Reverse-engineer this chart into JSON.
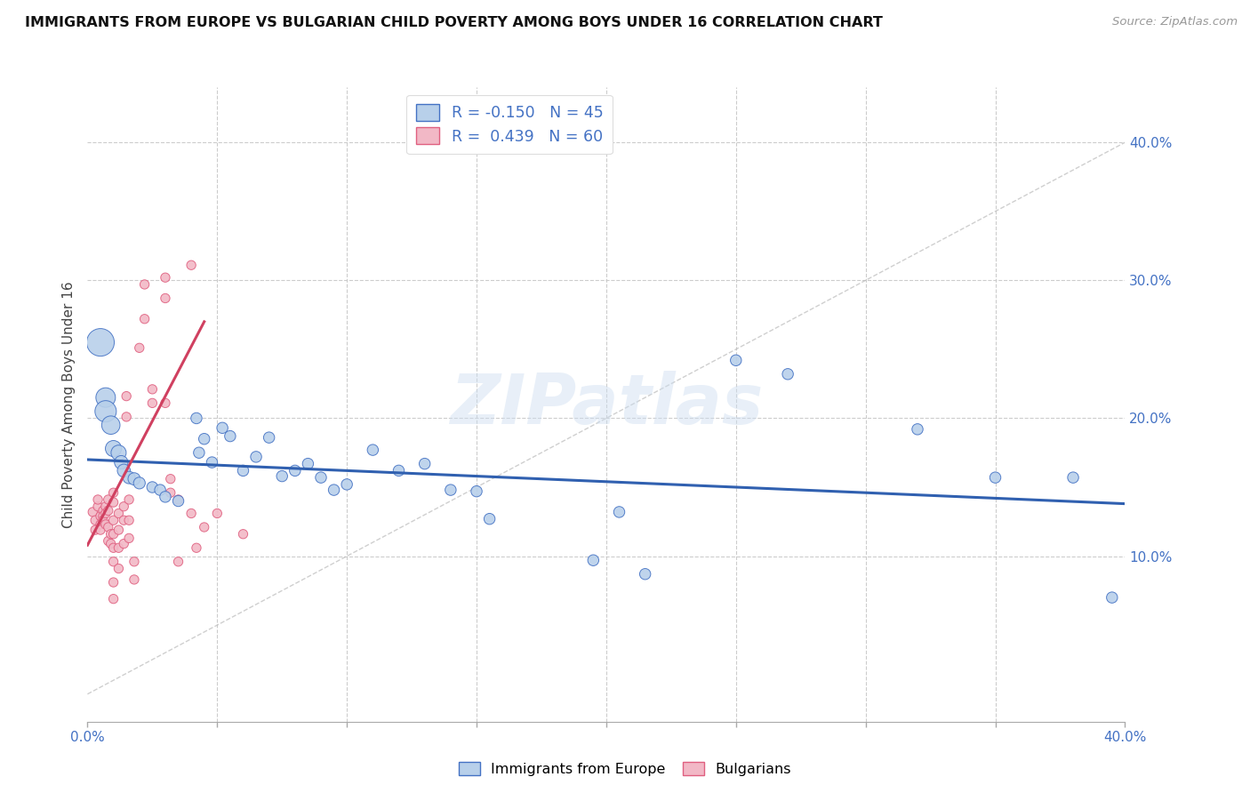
{
  "title": "IMMIGRANTS FROM EUROPE VS BULGARIAN CHILD POVERTY AMONG BOYS UNDER 16 CORRELATION CHART",
  "source": "Source: ZipAtlas.com",
  "ylabel": "Child Poverty Among Boys Under 16",
  "xlim": [
    0,
    0.4
  ],
  "ylim": [
    -0.02,
    0.44
  ],
  "right_yticks": [
    0.1,
    0.2,
    0.3,
    0.4
  ],
  "right_ytick_labels": [
    "10.0%",
    "20.0%",
    "30.0%",
    "40.0%"
  ],
  "legend_blue_r": "-0.150",
  "legend_blue_n": "45",
  "legend_pink_r": "0.439",
  "legend_pink_n": "60",
  "watermark": "ZIPatlas",
  "blue_color": "#b8d0ea",
  "pink_color": "#f2b8c6",
  "blue_edge_color": "#4472c4",
  "pink_edge_color": "#e06080",
  "blue_line_color": "#3060b0",
  "pink_line_color": "#d04060",
  "axis_label_color": "#4472c4",
  "title_color": "#111111",
  "source_color": "#999999",
  "grid_color": "#cccccc",
  "diag_color": "#bbbbbb",
  "blue_scatter": [
    [
      0.005,
      0.255
    ],
    [
      0.007,
      0.215
    ],
    [
      0.007,
      0.205
    ],
    [
      0.009,
      0.195
    ],
    [
      0.01,
      0.178
    ],
    [
      0.012,
      0.175
    ],
    [
      0.013,
      0.168
    ],
    [
      0.014,
      0.162
    ],
    [
      0.016,
      0.157
    ],
    [
      0.018,
      0.156
    ],
    [
      0.02,
      0.153
    ],
    [
      0.025,
      0.15
    ],
    [
      0.028,
      0.148
    ],
    [
      0.03,
      0.143
    ],
    [
      0.035,
      0.14
    ],
    [
      0.042,
      0.2
    ],
    [
      0.043,
      0.175
    ],
    [
      0.045,
      0.185
    ],
    [
      0.048,
      0.168
    ],
    [
      0.052,
      0.193
    ],
    [
      0.055,
      0.187
    ],
    [
      0.06,
      0.162
    ],
    [
      0.065,
      0.172
    ],
    [
      0.07,
      0.186
    ],
    [
      0.075,
      0.158
    ],
    [
      0.08,
      0.162
    ],
    [
      0.085,
      0.167
    ],
    [
      0.09,
      0.157
    ],
    [
      0.095,
      0.148
    ],
    [
      0.1,
      0.152
    ],
    [
      0.11,
      0.177
    ],
    [
      0.12,
      0.162
    ],
    [
      0.13,
      0.167
    ],
    [
      0.14,
      0.148
    ],
    [
      0.15,
      0.147
    ],
    [
      0.155,
      0.127
    ],
    [
      0.195,
      0.097
    ],
    [
      0.205,
      0.132
    ],
    [
      0.215,
      0.087
    ],
    [
      0.25,
      0.242
    ],
    [
      0.27,
      0.232
    ],
    [
      0.32,
      0.192
    ],
    [
      0.35,
      0.157
    ],
    [
      0.38,
      0.157
    ],
    [
      0.395,
      0.07
    ]
  ],
  "blue_sizes": [
    500,
    250,
    300,
    220,
    170,
    150,
    120,
    110,
    100,
    100,
    90,
    80,
    80,
    80,
    80,
    80,
    80,
    80,
    80,
    80,
    80,
    80,
    80,
    80,
    80,
    80,
    80,
    80,
    80,
    80,
    80,
    80,
    80,
    80,
    80,
    80,
    80,
    80,
    80,
    80,
    80,
    80,
    80,
    80,
    80
  ],
  "pink_scatter": [
    [
      0.002,
      0.132
    ],
    [
      0.003,
      0.126
    ],
    [
      0.003,
      0.119
    ],
    [
      0.004,
      0.136
    ],
    [
      0.004,
      0.141
    ],
    [
      0.005,
      0.129
    ],
    [
      0.005,
      0.123
    ],
    [
      0.005,
      0.119
    ],
    [
      0.006,
      0.133
    ],
    [
      0.006,
      0.129
    ],
    [
      0.006,
      0.126
    ],
    [
      0.007,
      0.136
    ],
    [
      0.007,
      0.131
    ],
    [
      0.007,
      0.123
    ],
    [
      0.008,
      0.141
    ],
    [
      0.008,
      0.133
    ],
    [
      0.008,
      0.121
    ],
    [
      0.008,
      0.111
    ],
    [
      0.009,
      0.116
    ],
    [
      0.009,
      0.109
    ],
    [
      0.01,
      0.146
    ],
    [
      0.01,
      0.139
    ],
    [
      0.01,
      0.126
    ],
    [
      0.01,
      0.116
    ],
    [
      0.01,
      0.106
    ],
    [
      0.01,
      0.096
    ],
    [
      0.01,
      0.081
    ],
    [
      0.01,
      0.069
    ],
    [
      0.012,
      0.131
    ],
    [
      0.012,
      0.119
    ],
    [
      0.012,
      0.106
    ],
    [
      0.012,
      0.091
    ],
    [
      0.014,
      0.136
    ],
    [
      0.014,
      0.126
    ],
    [
      0.014,
      0.109
    ],
    [
      0.015,
      0.216
    ],
    [
      0.015,
      0.201
    ],
    [
      0.016,
      0.141
    ],
    [
      0.016,
      0.126
    ],
    [
      0.016,
      0.113
    ],
    [
      0.018,
      0.096
    ],
    [
      0.018,
      0.083
    ],
    [
      0.02,
      0.251
    ],
    [
      0.022,
      0.297
    ],
    [
      0.022,
      0.272
    ],
    [
      0.025,
      0.221
    ],
    [
      0.025,
      0.211
    ],
    [
      0.03,
      0.302
    ],
    [
      0.03,
      0.287
    ],
    [
      0.03,
      0.211
    ],
    [
      0.032,
      0.156
    ],
    [
      0.032,
      0.146
    ],
    [
      0.035,
      0.141
    ],
    [
      0.035,
      0.096
    ],
    [
      0.04,
      0.311
    ],
    [
      0.04,
      0.131
    ],
    [
      0.042,
      0.106
    ],
    [
      0.045,
      0.121
    ],
    [
      0.05,
      0.131
    ],
    [
      0.06,
      0.116
    ]
  ],
  "pink_sizes": [
    55,
    55,
    55,
    55,
    55,
    55,
    55,
    55,
    55,
    55,
    55,
    55,
    55,
    55,
    55,
    55,
    55,
    55,
    55,
    55,
    55,
    55,
    55,
    55,
    55,
    55,
    55,
    55,
    55,
    55,
    55,
    55,
    55,
    55,
    55,
    55,
    55,
    55,
    55,
    55,
    55,
    55,
    55,
    55,
    55,
    55,
    55,
    55,
    55,
    55,
    55,
    55,
    55,
    55,
    55,
    55,
    55,
    55,
    55,
    55
  ],
  "blue_trend_x": [
    0.0,
    0.4
  ],
  "blue_trend_y": [
    0.17,
    0.138
  ],
  "pink_trend_x": [
    0.0,
    0.045
  ],
  "pink_trend_y": [
    0.108,
    0.27
  ],
  "diag_line_x": [
    0.0,
    0.4
  ],
  "diag_line_y": [
    0.0,
    0.4
  ],
  "xtick_positions": [
    0.0,
    0.05,
    0.1,
    0.15,
    0.2,
    0.25,
    0.3,
    0.35,
    0.4
  ],
  "ytick_positions": [
    0.1,
    0.2,
    0.3,
    0.4
  ]
}
